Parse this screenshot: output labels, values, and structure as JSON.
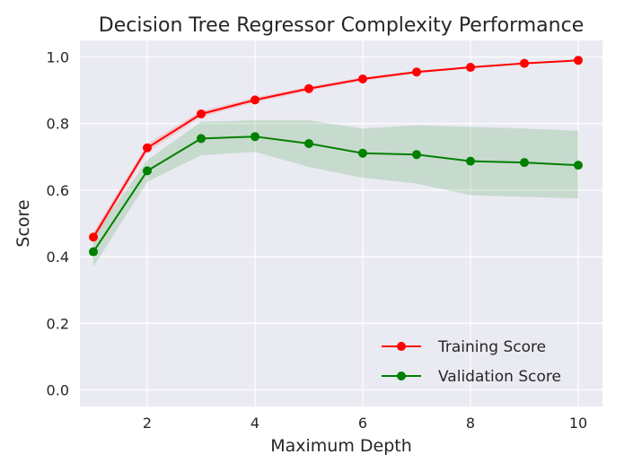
{
  "chart_data": {
    "type": "line",
    "title": "Decision Tree Regressor Complexity Performance",
    "xlabel": "Maximum Depth",
    "ylabel": "Score",
    "x": [
      1,
      2,
      3,
      4,
      5,
      6,
      7,
      8,
      9,
      10
    ],
    "xlim": [
      0.75,
      10.45
    ],
    "ylim": [
      -0.05,
      1.05
    ],
    "xticks": [
      2,
      4,
      6,
      8,
      10
    ],
    "xtick_labels": [
      "2",
      "4",
      "6",
      "8",
      "10"
    ],
    "yticks": [
      0.0,
      0.2,
      0.4,
      0.6,
      0.8,
      1.0
    ],
    "ytick_labels": [
      "0.0",
      "0.2",
      "0.4",
      "0.6",
      "0.8",
      "1.0"
    ],
    "grid": true,
    "legend_position": "bottom-right",
    "series": [
      {
        "name": "Training Score",
        "color": "#ff0000",
        "fill_color": "#ff0000",
        "values": [
          0.459,
          0.727,
          0.829,
          0.871,
          0.905,
          0.934,
          0.955,
          0.969,
          0.981,
          0.99
        ],
        "band_low": [
          0.445,
          0.715,
          0.82,
          0.864,
          0.899,
          0.929,
          0.951,
          0.966,
          0.979,
          0.989
        ],
        "band_high": [
          0.473,
          0.739,
          0.838,
          0.878,
          0.911,
          0.939,
          0.959,
          0.972,
          0.983,
          0.991
        ]
      },
      {
        "name": "Validation Score",
        "color": "#008000",
        "fill_color": "#008000",
        "values": [
          0.415,
          0.658,
          0.755,
          0.761,
          0.74,
          0.711,
          0.707,
          0.687,
          0.683,
          0.675
        ],
        "band_low": [
          0.37,
          0.625,
          0.705,
          0.715,
          0.67,
          0.637,
          0.62,
          0.585,
          0.58,
          0.575
        ],
        "band_high": [
          0.46,
          0.69,
          0.805,
          0.81,
          0.81,
          0.785,
          0.795,
          0.79,
          0.785,
          0.778
        ]
      }
    ]
  }
}
